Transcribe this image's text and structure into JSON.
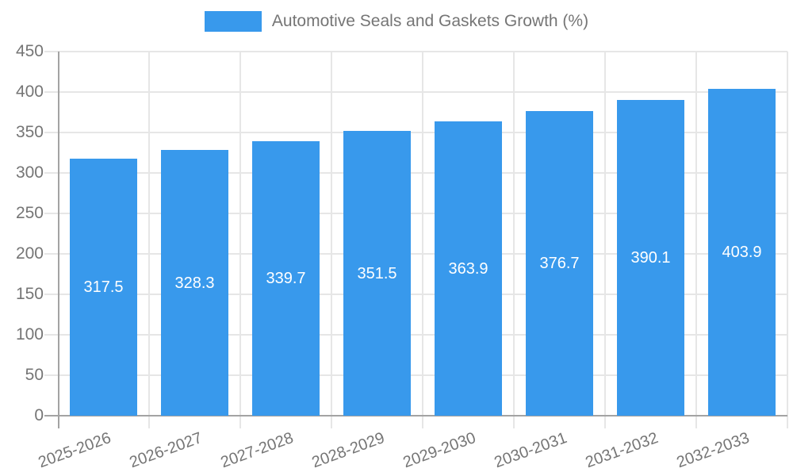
{
  "chart_data": {
    "type": "bar",
    "title": "Automotive Seals and Gaskets Growth (%)",
    "legend": {
      "position": "top",
      "entries": [
        "Automotive Seals and Gaskets Growth (%)"
      ]
    },
    "categories": [
      "2025-2026",
      "2026-2027",
      "2027-2028",
      "2028-2029",
      "2029-2030",
      "2030-2031",
      "2031-2032",
      "2032-2033"
    ],
    "series": [
      {
        "name": "Automotive Seals and Gaskets Growth (%)",
        "values": [
          317.5,
          328.3,
          339.7,
          351.5,
          363.9,
          376.7,
          390.1,
          403.9
        ]
      }
    ],
    "value_labels": [
      "317.5",
      "328.3",
      "339.7",
      "351.5",
      "363.9",
      "376.7",
      "390.1",
      "403.9"
    ],
    "xlabel": "",
    "ylabel": "",
    "ylim": [
      0,
      450
    ],
    "ytick_step": 50,
    "yticks": [
      "0",
      "50",
      "100",
      "150",
      "200",
      "250",
      "300",
      "350",
      "400",
      "450"
    ],
    "grid": true,
    "x_label_rotation_deg": -20,
    "colors": {
      "bar": "#3899EC",
      "value_label": "#FFFFFF",
      "grid": "#E6E6E6",
      "axis": "#A3A3A3",
      "text": "#757575"
    }
  }
}
